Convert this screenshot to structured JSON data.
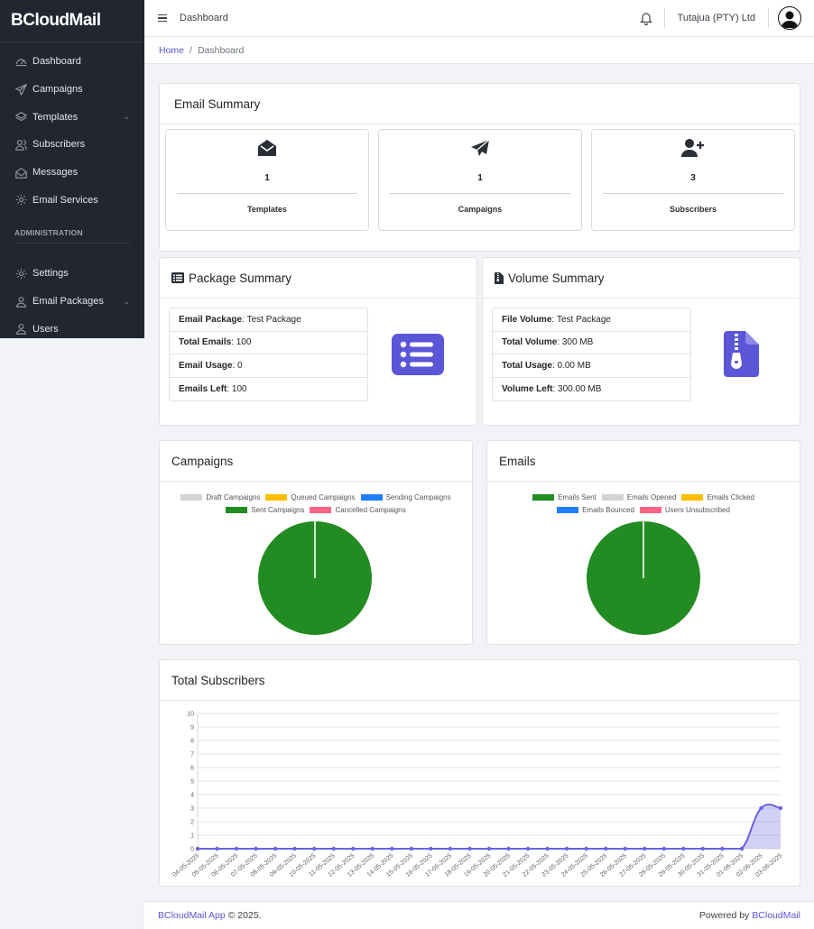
{
  "brand": {
    "name": "BCloudMail"
  },
  "sidebar": {
    "items": [
      {
        "label": "Dashboard",
        "icon": "speedometer-icon"
      },
      {
        "label": "Campaigns",
        "icon": "send-icon"
      },
      {
        "label": "Templates",
        "icon": "layers-icon",
        "has_children": true
      },
      {
        "label": "Subscribers",
        "icon": "people-icon"
      },
      {
        "label": "Messages",
        "icon": "envelope-open-icon"
      },
      {
        "label": "Email Services",
        "icon": "gear-icon"
      }
    ],
    "section_title": "ADMINISTRATION",
    "admin_items": [
      {
        "label": "Settings",
        "icon": "gear-icon"
      },
      {
        "label": "Email Packages",
        "icon": "user-icon",
        "has_children": true
      },
      {
        "label": "Users",
        "icon": "user-icon"
      }
    ]
  },
  "header": {
    "title": "Dashboard",
    "company": "Tutajua (PTY) Ltd"
  },
  "breadcrumb": {
    "home": "Home",
    "current": "Dashboard"
  },
  "email_summary": {
    "title": "Email Summary",
    "stats": [
      {
        "value": "1",
        "label": "Templates",
        "icon": "envelope-open-icon"
      },
      {
        "value": "1",
        "label": "Campaigns",
        "icon": "paper-plane-icon"
      },
      {
        "value": "3",
        "label": "Subscribers",
        "icon": "user-plus-icon"
      }
    ]
  },
  "package_summary": {
    "title": "Package Summary",
    "rows": [
      {
        "key": "Email Package",
        "value": "Test Package"
      },
      {
        "key": "Total Emails",
        "value": "100"
      },
      {
        "key": "Email Usage",
        "value": "0"
      },
      {
        "key": "Emails Left",
        "value": "100"
      }
    ]
  },
  "volume_summary": {
    "title": "Volume Summary",
    "rows": [
      {
        "key": "File Volume",
        "value": "Test Package"
      },
      {
        "key": "Total Volume",
        "value": "300 MB"
      },
      {
        "key": "Total Usage",
        "value": "0.00 MB"
      },
      {
        "key": "Volume Left",
        "value": "300.00 MB"
      }
    ]
  },
  "campaigns_chart": {
    "title": "Campaigns"
  },
  "emails_chart": {
    "title": "Emails"
  },
  "subscribers_chart": {
    "title": "Total Subscribers"
  },
  "colors": {
    "accent": "#5856d6",
    "sidebar": "#212631",
    "green": "#228b22"
  },
  "chart_data": [
    {
      "type": "pie",
      "title": "Campaigns",
      "categories": [
        "Draft Campaigns",
        "Queued Campaigns",
        "Sending Campaigns",
        "Sent Campaigns",
        "Cancelled Campaigns"
      ],
      "values": [
        0,
        0,
        0,
        1,
        0
      ],
      "colors": [
        "#d3d3d3",
        "#ffbf00",
        "#1e7fff",
        "#228b22",
        "#ff6384"
      ],
      "legend": "top"
    },
    {
      "type": "pie",
      "title": "Emails",
      "categories": [
        "Emails Sent",
        "Emails Opened",
        "Emails Clicked",
        "Emails Bounced",
        "Users Unsubscribed"
      ],
      "values": [
        1,
        0,
        0,
        0,
        0
      ],
      "colors": [
        "#228b22",
        "#d3d3d3",
        "#ffbf00",
        "#1e7fff",
        "#ff6384"
      ],
      "legend": "top"
    },
    {
      "type": "area",
      "title": "Total Subscribers",
      "x": [
        "04-05-2025",
        "05-05-2025",
        "06-05-2025",
        "07-05-2025",
        "08-05-2025",
        "09-05-2025",
        "10-05-2025",
        "11-05-2025",
        "12-05-2025",
        "13-05-2025",
        "14-05-2025",
        "15-05-2025",
        "16-05-2025",
        "17-05-2025",
        "18-05-2025",
        "19-05-2025",
        "20-05-2025",
        "21-05-2025",
        "22-05-2025",
        "23-05-2025",
        "24-05-2025",
        "25-05-2025",
        "26-05-2025",
        "27-05-2025",
        "28-05-2025",
        "29-05-2025",
        "30-05-2025",
        "31-05-2025",
        "01-06-2025",
        "02-06-2025",
        "03-06-2025"
      ],
      "values": [
        0,
        0,
        0,
        0,
        0,
        0,
        0,
        0,
        0,
        0,
        0,
        0,
        0,
        0,
        0,
        0,
        0,
        0,
        0,
        0,
        0,
        0,
        0,
        0,
        0,
        0,
        0,
        0,
        0,
        3,
        3
      ],
      "ylim": [
        0,
        10
      ],
      "yticks": [
        0,
        1,
        2,
        3,
        4,
        5,
        6,
        7,
        8,
        9,
        10
      ],
      "grid": true,
      "color": "#6b63e0"
    }
  ],
  "footer": {
    "app": "BCloudMail App",
    "copyright": "© 2025.",
    "powered_by": "Powered by",
    "powered_link": "BCloudMail"
  }
}
